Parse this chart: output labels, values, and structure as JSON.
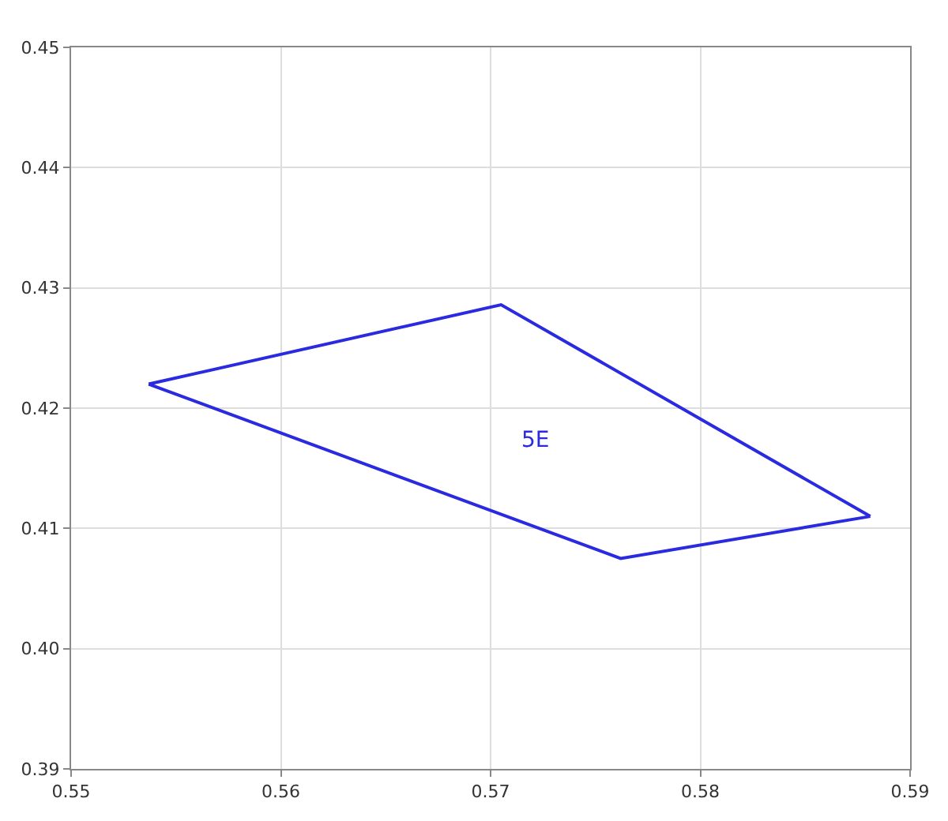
{
  "chart_data": {
    "type": "line",
    "series": [
      {
        "color": "#2a2ae0",
        "x": [
          0.5537,
          0.5705,
          0.5881
        ],
        "values": [
          0.422,
          0.4286,
          0.411
        ]
      },
      {
        "color": "#2a2ae0",
        "x": [
          0.5537,
          0.5762,
          0.5881
        ],
        "values": [
          0.422,
          0.4075,
          0.411
        ]
      }
    ],
    "annotations": [
      "5E"
    ],
    "xlim": [
      0.55,
      0.59
    ],
    "xticks": [
      0.55,
      0.56,
      0.57,
      0.58,
      0.59
    ],
    "ylim": [
      0.39,
      0.45
    ],
    "yticks": [
      0.39,
      {
        "value": 0.4,
        "label": "0.40"
      },
      0.41,
      0.42,
      0.43,
      0.44,
      0.45
    ],
    "grid": true,
    "marker": "none",
    "line_style": "solid",
    "legend": false
  }
}
